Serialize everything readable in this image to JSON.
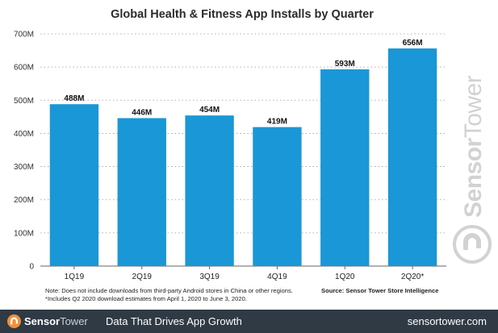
{
  "chart_data": {
    "type": "bar",
    "title": "Global Health & Fitness App Installs by Quarter",
    "categories": [
      "1Q19",
      "2Q19",
      "3Q19",
      "4Q19",
      "1Q20",
      "2Q20*"
    ],
    "values": [
      488,
      446,
      454,
      419,
      593,
      656
    ],
    "data_labels": [
      "488M",
      "446M",
      "454M",
      "419M",
      "593M",
      "656M"
    ],
    "ylim": [
      0,
      700
    ],
    "yticks": [
      0,
      100,
      200,
      300,
      400,
      500,
      600,
      700
    ],
    "ytick_labels": [
      "0",
      "100M",
      "200M",
      "300M",
      "400M",
      "500M",
      "600M",
      "700M"
    ],
    "bar_color": "#1a97d6",
    "grid": true,
    "legend": "none"
  },
  "notes": {
    "line1": "Note: Does not include downloads from third-party Android stores in China or other regions.",
    "line2": "*Includes Q2 2020 download estimates from April 1, 2020 to June 3, 2020.",
    "source": "Source: Sensor Tower Store Intelligence"
  },
  "watermark": {
    "text_strong": "Sensor",
    "text_light": "Tower",
    "icon": "sensortower-logo-icon"
  },
  "footer": {
    "brand_strong": "Sensor",
    "brand_light": "Tower",
    "tagline": "Data That Drives App Growth",
    "url": "sensortower.com",
    "background": "#2f3a44",
    "icon": "sensortower-logo-icon"
  }
}
